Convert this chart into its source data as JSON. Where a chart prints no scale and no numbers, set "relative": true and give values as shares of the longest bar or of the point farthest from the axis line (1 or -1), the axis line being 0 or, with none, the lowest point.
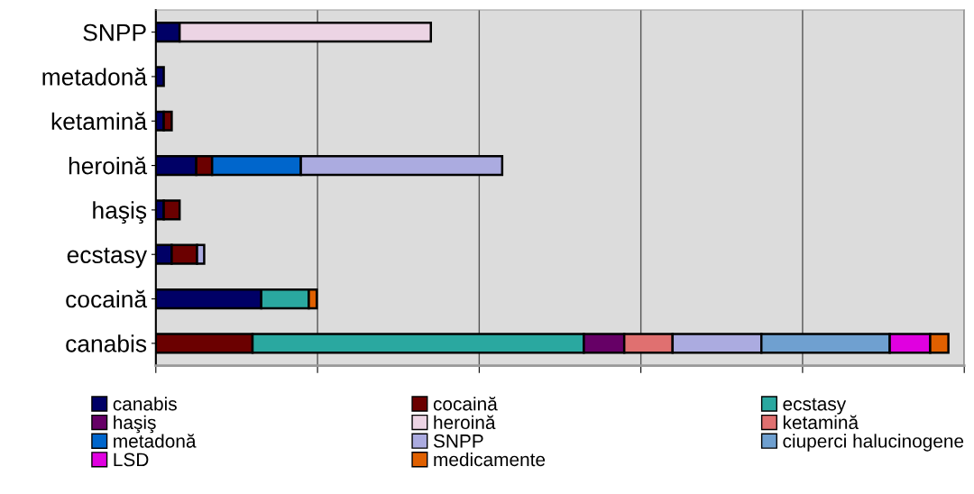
{
  "chart_data": {
    "type": "bar",
    "orientation": "horizontal",
    "stacked": true,
    "relative": true,
    "grid": "x",
    "legend": "bottom",
    "categories": [
      "SNPP",
      "metadonă",
      "ketamină",
      "heroină",
      "haşiş",
      "ecstasy",
      "cocaină",
      "canabis"
    ],
    "series": [
      {
        "name": "canabis",
        "color": "#000066",
        "values": [
          0.03,
          0.01,
          0.01,
          0.051,
          0.01,
          0.02,
          0.133,
          null
        ]
      },
      {
        "name": "cocaină",
        "color": "#6b0000",
        "values": [
          null,
          null,
          0.01,
          0.02,
          0.02,
          0.032,
          null,
          0.122
        ]
      },
      {
        "name": "ecstasy",
        "color": "#2aa8a0",
        "values": [
          null,
          null,
          null,
          null,
          null,
          null,
          0.06,
          0.418
        ]
      },
      {
        "name": "haşiş",
        "color": "#660066",
        "values": [
          null,
          null,
          null,
          null,
          null,
          null,
          null,
          0.051
        ]
      },
      {
        "name": "heroină",
        "color": "#ecd4e4",
        "values": [
          0.317,
          null,
          null,
          null,
          null,
          null,
          null,
          null
        ]
      },
      {
        "name": "ketamină",
        "color": "#e07070",
        "values": [
          null,
          null,
          null,
          null,
          null,
          null,
          null,
          0.061
        ]
      },
      {
        "name": "metadonă",
        "color": "#0066cc",
        "values": [
          null,
          null,
          null,
          0.112,
          null,
          null,
          null,
          null
        ]
      },
      {
        "name": "SNPP",
        "color": "#ababe0",
        "values": [
          null,
          null,
          null,
          0.254,
          null,
          0.009,
          null,
          0.112
        ]
      },
      {
        "name": "ciuperci halucinogene",
        "color": "#6fa0d0",
        "values": [
          null,
          null,
          null,
          null,
          null,
          null,
          null,
          0.162
        ]
      },
      {
        "name": "LSD",
        "color": "#e000e0",
        "values": [
          null,
          null,
          null,
          null,
          null,
          null,
          null,
          0.051
        ]
      },
      {
        "name": "medicamente",
        "color": "#e06000",
        "values": [
          null,
          null,
          null,
          null,
          null,
          null,
          0.01,
          0.023
        ]
      }
    ]
  }
}
